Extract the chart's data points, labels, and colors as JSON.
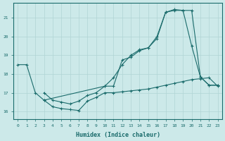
{
  "xlabel": "Humidex (Indice chaleur)",
  "background_color": "#cce9e9",
  "line_color": "#1a6b6b",
  "grid_color": "#b0d4d4",
  "xlim": [
    -0.5,
    23.5
  ],
  "ylim": [
    15.6,
    21.8
  ],
  "yticks": [
    16,
    17,
    18,
    19,
    20,
    21
  ],
  "xticks": [
    0,
    1,
    2,
    3,
    4,
    5,
    6,
    7,
    8,
    9,
    10,
    11,
    12,
    13,
    14,
    15,
    16,
    17,
    18,
    19,
    20,
    21,
    22,
    23
  ],
  "series1_x": [
    0,
    1,
    2,
    3,
    10,
    11,
    12,
    13,
    14,
    15,
    16,
    17,
    18,
    19,
    20,
    21,
    22,
    23
  ],
  "series1_y": [
    18.5,
    18.5,
    17.0,
    16.6,
    17.35,
    17.35,
    18.75,
    18.9,
    19.25,
    19.4,
    19.9,
    21.3,
    21.4,
    21.4,
    19.5,
    17.85,
    17.4,
    17.4
  ],
  "series2_x": [
    3,
    4,
    5,
    6,
    7,
    8,
    9,
    10,
    11,
    12,
    13,
    14,
    15,
    16,
    17,
    18,
    19,
    20,
    21,
    22,
    23
  ],
  "series2_y": [
    16.6,
    16.25,
    16.15,
    16.1,
    16.05,
    16.55,
    16.75,
    17.0,
    17.0,
    17.05,
    17.1,
    17.15,
    17.2,
    17.3,
    17.4,
    17.5,
    17.6,
    17.7,
    17.75,
    17.8,
    17.35
  ],
  "series3_x": [
    3,
    4,
    5,
    6,
    7,
    8,
    9,
    10,
    11,
    12,
    13,
    14,
    15,
    16,
    17,
    18,
    19,
    20,
    21,
    22,
    23
  ],
  "series3_y": [
    17.0,
    16.6,
    16.5,
    16.4,
    16.55,
    16.85,
    17.0,
    17.35,
    17.8,
    18.5,
    19.0,
    19.3,
    19.4,
    20.0,
    21.3,
    21.45,
    21.4,
    21.4,
    17.85,
    17.4,
    17.4
  ]
}
